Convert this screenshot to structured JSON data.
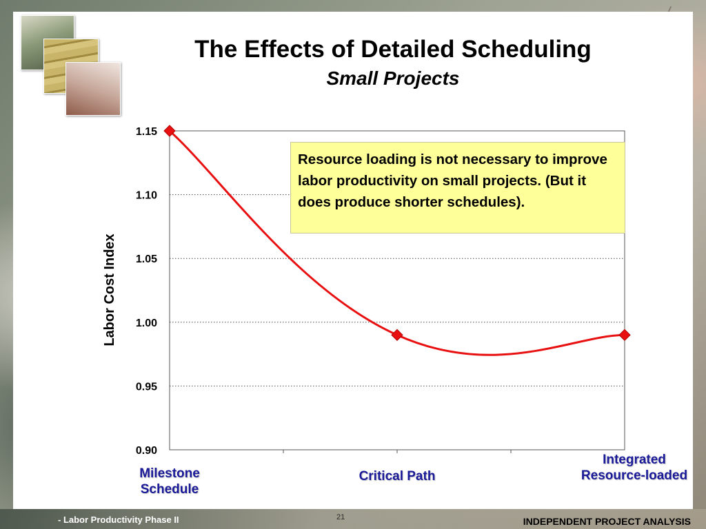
{
  "slide": {
    "title": "The Effects of Detailed Scheduling",
    "subtitle": "Small Projects",
    "callout": "Resource loading is not necessary to improve labor productivity on small projects.  (But it does produce shorter schedules).",
    "footer_left": "- Labor Productivity Phase II",
    "page_number": "21",
    "footer_right": "INDEPENDENT PROJECT ANALYSIS"
  },
  "chart_data": {
    "type": "line",
    "title": "The Effects of Detailed Scheduling",
    "subtitle": "Small Projects",
    "xlabel": "",
    "ylabel": "Labor Cost Index",
    "categories": [
      "Milestone Schedule",
      "Critical Path",
      "Integrated Resource-loaded"
    ],
    "category_lines": [
      [
        "Milestone",
        "Schedule"
      ],
      [
        "Critical Path"
      ],
      [
        "Integrated",
        "Resource-loaded"
      ]
    ],
    "series": [
      {
        "values": [
          1.15,
          0.99,
          0.99
        ]
      }
    ],
    "ylim": [
      0.9,
      1.15
    ],
    "yticks": [
      "1.15",
      "1.10",
      "1.05",
      "1.00",
      "0.95",
      "0.90"
    ],
    "grid": "horizontal dotted",
    "line_color": "#e81010",
    "marker": "diamond",
    "category_label_color": "#1a1a99",
    "callout_color": "#ffff99"
  }
}
